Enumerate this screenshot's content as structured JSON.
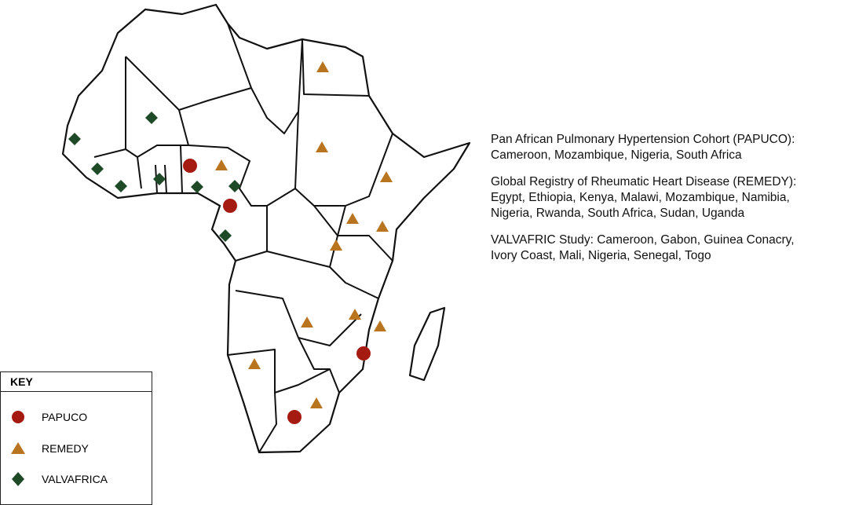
{
  "studies": [
    {
      "lines": [
        "Pan African Pulmonary Hypertension Cohort (PAPUCO):",
        "Cameroon, Mozambique, Nigeria, South Africa"
      ]
    },
    {
      "lines": [
        "Global Registry of Rheumatic Heart Disease (REMEDY):",
        "Egypt, Ethiopia, Kenya, Malawi, Mozambique, Namibia,",
        "Nigeria, Rwanda, South Africa, Sudan, Uganda"
      ]
    },
    {
      "lines": [
        "VALVAFRIC Study: Cameroon, Gabon, Guinea Conacry,",
        "Ivory Coast, Mali, Nigeria, Senegal, Togo"
      ]
    }
  ],
  "key": {
    "title": "KEY",
    "items": [
      "PAPUCO",
      "REMEDY",
      "VALVAFRICA"
    ]
  }
}
